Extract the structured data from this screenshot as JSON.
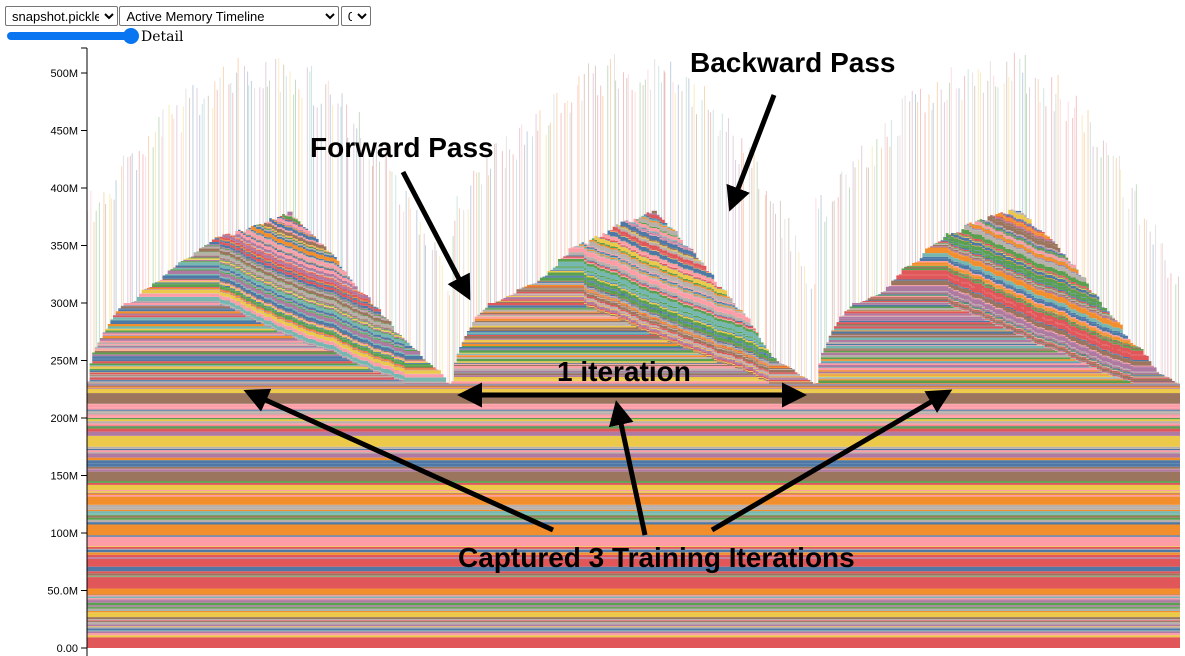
{
  "controls": {
    "file_select": "snapshot.pickle",
    "view_select": "Active Memory Timeline",
    "device_select": "0",
    "slider_label": "Detail",
    "slider_value_percent": 100
  },
  "chart_data": {
    "type": "area",
    "stacked": true,
    "xlabel": "",
    "ylabel": "",
    "ylim": [
      0,
      530000000
    ],
    "y_ticks": [
      0,
      50000000,
      100000000,
      150000000,
      200000000,
      250000000,
      300000000,
      350000000,
      400000000,
      450000000,
      500000000
    ],
    "y_tick_labels": [
      "0.00",
      "50.0M",
      "100M",
      "150M",
      "200M",
      "250M",
      "300M",
      "350M",
      "400M",
      "450M",
      "500M"
    ],
    "iterations": 3,
    "baseline_M": 230,
    "forward_plateau_M": 300,
    "peak_active_M": 380,
    "peak_spike_M": 520,
    "palette": [
      "#4e79a7",
      "#f28e2c",
      "#e15759",
      "#76b7b2",
      "#59a14f",
      "#edc949",
      "#af7aa1",
      "#ff9da7",
      "#9c755f",
      "#bab0ab"
    ]
  },
  "annotations": {
    "backward": "Backward Pass",
    "forward": "Forward Pass",
    "iteration": "1 iteration",
    "captured": "Captured 3 Training Iterations"
  }
}
